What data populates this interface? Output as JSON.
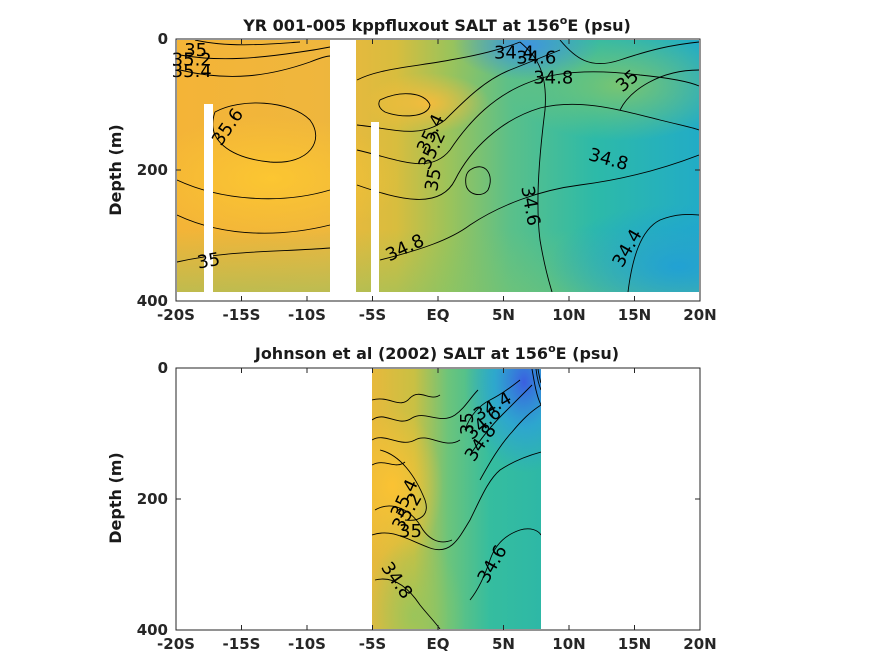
{
  "chart_data": [
    {
      "type": "heatmap",
      "title": "YR 001-005 kppfluxout SALT at 156",
      "title_superscript": "o",
      "title_suffix": "E (psu)",
      "ylabel": "Depth (m)",
      "x_ticks": [
        "-20S",
        "-15S",
        "-10S",
        "-5S",
        "EQ",
        "5N",
        "10N",
        "15N",
        "20N"
      ],
      "x_tick_values": [
        -20,
        -15,
        -10,
        -5,
        0,
        5,
        10,
        15,
        20
      ],
      "y_ticks": [
        "0",
        "200",
        "400"
      ],
      "y_tick_values": [
        0,
        200,
        400
      ],
      "xlim": [
        -20,
        20
      ],
      "ylim": [
        400,
        0
      ],
      "y_reversed": true,
      "data_extent": {
        "x": [
          -20,
          20
        ],
        "depth": [
          0,
          385
        ]
      },
      "masked_columns": [
        [
          -18.1,
          -17.5
        ],
        [
          -8.0,
          -6.0
        ],
        [
          -5.0,
          -4.5
        ]
      ],
      "masked_from_depth": [
        100,
        0,
        125
      ],
      "colormap": "parula",
      "color_range": [
        34.0,
        35.8
      ],
      "contour_levels": [
        34.4,
        34.6,
        34.8,
        35.0,
        35.2,
        35.4,
        35.6
      ],
      "contour_labels": [
        {
          "text": "35",
          "x": -18.5,
          "depth": 18,
          "angle": 0
        },
        {
          "text": "35.2",
          "x": -18.8,
          "depth": 33,
          "angle": 0
        },
        {
          "text": "35.4",
          "x": -18.8,
          "depth": 50,
          "angle": 0
        },
        {
          "text": "35.6",
          "x": -16.0,
          "depth": 135,
          "angle": -55
        },
        {
          "text": "35",
          "x": -17.5,
          "depth": 340,
          "angle": -10
        },
        {
          "text": "35.4",
          "x": -0.5,
          "depth": 145,
          "angle": -65
        },
        {
          "text": "35.2",
          "x": -0.4,
          "depth": 170,
          "angle": -65
        },
        {
          "text": "35",
          "x": -0.3,
          "depth": 215,
          "angle": -80
        },
        {
          "text": "34.8",
          "x": -2.5,
          "depth": 320,
          "angle": -25
        },
        {
          "text": "34.4",
          "x": 5.8,
          "depth": 22,
          "angle": 0
        },
        {
          "text": "34.6",
          "x": 7.5,
          "depth": 30,
          "angle": 0
        },
        {
          "text": "34.8",
          "x": 8.8,
          "depth": 60,
          "angle": 0
        },
        {
          "text": "35",
          "x": 14.5,
          "depth": 65,
          "angle": -40
        },
        {
          "text": "34.8",
          "x": 13.0,
          "depth": 185,
          "angle": 15
        },
        {
          "text": "34.6",
          "x": 7.0,
          "depth": 255,
          "angle": 80
        },
        {
          "text": "34.4",
          "x": 14.5,
          "depth": 320,
          "angle": -60
        }
      ]
    },
    {
      "type": "heatmap",
      "title": "Johnson et al (2002) SALT at 156",
      "title_superscript": "o",
      "title_suffix": "E (psu)",
      "ylabel": "Depth (m)",
      "x_ticks": [
        "-20S",
        "-15S",
        "-10S",
        "-5S",
        "EQ",
        "5N",
        "10N",
        "15N",
        "20N"
      ],
      "x_tick_values": [
        -20,
        -15,
        -10,
        -5,
        0,
        5,
        10,
        15,
        20
      ],
      "y_ticks": [
        "0",
        "200",
        "400"
      ],
      "y_tick_values": [
        0,
        200,
        400
      ],
      "xlim": [
        -20,
        20
      ],
      "ylim": [
        400,
        0
      ],
      "y_reversed": true,
      "data_extent": {
        "x": [
          -5,
          8
        ],
        "depth": [
          0,
          400
        ]
      },
      "colormap": "parula",
      "color_range": [
        34.0,
        35.8
      ],
      "contour_levels": [
        34.4,
        34.6,
        34.8,
        35.0,
        35.2,
        35.4
      ],
      "contour_labels": [
        {
          "text": "34.4",
          "x": 4.2,
          "depth": 60,
          "angle": -30
        },
        {
          "text": "34.6",
          "x": 3.5,
          "depth": 85,
          "angle": -40
        },
        {
          "text": "35",
          "x": 2.3,
          "depth": 85,
          "angle": -90
        },
        {
          "text": "34.8",
          "x": 3.3,
          "depth": 115,
          "angle": -55
        },
        {
          "text": "35.4",
          "x": -2.5,
          "depth": 200,
          "angle": -65
        },
        {
          "text": "35.2",
          "x": -2.3,
          "depth": 220,
          "angle": -60
        },
        {
          "text": "35",
          "x": -2.1,
          "depth": 250,
          "angle": 0
        },
        {
          "text": "34.8",
          "x": -3.2,
          "depth": 325,
          "angle": 55
        },
        {
          "text": "34.6",
          "x": 4.2,
          "depth": 300,
          "angle": -60
        }
      ]
    }
  ]
}
